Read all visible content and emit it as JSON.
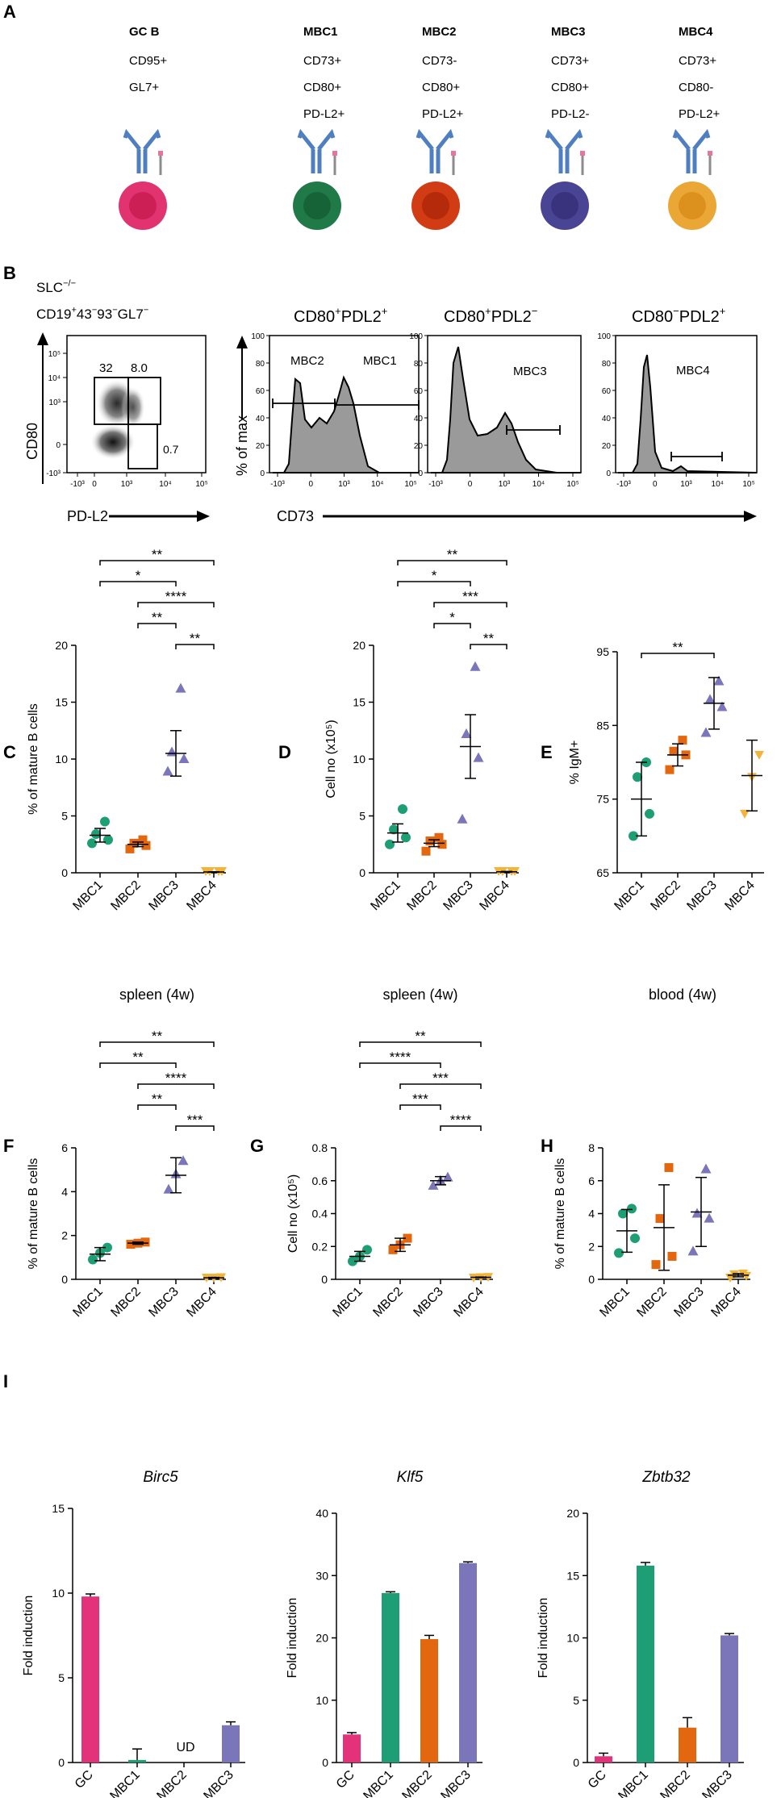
{
  "colors": {
    "mbc1": "#1d9e74",
    "mbc2": "#e2670e",
    "mbc3": "#7b75ba",
    "mbc4": "#f2b43a",
    "gc": "#e4327a",
    "antibody": "#4f7fc0"
  },
  "panel_a": {
    "label": "A",
    "cells": [
      {
        "name": "GC B",
        "markers": [
          "CD95+",
          "GL7+"
        ],
        "fill": "#e0336f",
        "nucleus": "#cc1f55"
      },
      {
        "name": "MBC1",
        "markers": [
          "CD73+",
          "CD80+",
          "PD-L2+"
        ],
        "fill": "#1f7a47",
        "nucleus": "#166338"
      },
      {
        "name": "MBC2",
        "markers": [
          "CD73-",
          "CD80+",
          "PD-L2+"
        ],
        "fill": "#d23c14",
        "nucleus": "#b52a0a"
      },
      {
        "name": "MBC3",
        "markers": [
          "CD73+",
          "CD80+",
          "PD-L2-"
        ],
        "fill": "#4a4494",
        "nucleus": "#39337d"
      },
      {
        "name": "MBC4",
        "markers": [
          "CD73+",
          "CD80-",
          "PD-L2+"
        ],
        "fill": "#eba735",
        "nucleus": "#dc901e"
      }
    ]
  },
  "panel_b": {
    "label": "B",
    "gating_title_1": "SLC-/-",
    "gating_title_2": "CD19+43-93-GL7-",
    "dot_plot": {
      "y_label": "CD80",
      "x_label": "PD-L2",
      "y_ticks": [
        "10⁵",
        "10⁴",
        "10³",
        "0",
        "-10³"
      ],
      "x_ticks": [
        "-10³",
        "0",
        "10³",
        "10⁴",
        "10⁵"
      ],
      "gate_values": [
        "32",
        "8.0",
        "0.7"
      ]
    },
    "histograms": [
      {
        "title": "CD80+PDL2+",
        "gate_labels": [
          "MBC2",
          "MBC1"
        ]
      },
      {
        "title": "CD80+PDL2-",
        "gate_labels": [
          "MBC3"
        ]
      },
      {
        "title": "CD80-PDL2+",
        "gate_labels": [
          "MBC4"
        ]
      }
    ],
    "hist_y_label": "% of max",
    "hist_y_ticks": [
      "100",
      "80",
      "60",
      "40",
      "20",
      "0"
    ],
    "hist_x_ticks": [
      "-10³",
      "0",
      "10³",
      "10⁴",
      "10⁵"
    ],
    "hist_x_label": "CD73"
  },
  "chart_data": [
    {
      "panel": "C",
      "type": "scatter",
      "categories": [
        "MBC1",
        "MBC2",
        "MBC3",
        "MBC4"
      ],
      "ylabel": "% of mature B cells",
      "title": "",
      "ylim": [
        0,
        20
      ],
      "yticks": [
        0,
        5,
        10,
        15,
        20
      ],
      "series": [
        {
          "name": "MBC1",
          "values": [
            2.6,
            2.9,
            3.4,
            4.5
          ],
          "mean": 3.3,
          "err": 0.6
        },
        {
          "name": "MBC2",
          "values": [
            2.1,
            2.4,
            2.6,
            2.9
          ],
          "mean": 2.5,
          "err": 0.2
        },
        {
          "name": "MBC3",
          "values": [
            8.9,
            10.0,
            10.6,
            16.2
          ],
          "mean": 10.5,
          "err": 2.0
        },
        {
          "name": "MBC4",
          "values": [
            0.04,
            0.06,
            0.08,
            0.1
          ],
          "mean": 0.07,
          "err": 0.02
        }
      ],
      "significance": [
        {
          "from": 0,
          "to": 3,
          "label": "**"
        },
        {
          "from": 0,
          "to": 2,
          "label": "*"
        },
        {
          "from": 1,
          "to": 3,
          "label": "****"
        },
        {
          "from": 1,
          "to": 2,
          "label": "**"
        },
        {
          "from": 2,
          "to": 3,
          "label": "**"
        }
      ]
    },
    {
      "panel": "D",
      "type": "scatter",
      "categories": [
        "MBC1",
        "MBC2",
        "MBC3",
        "MBC4"
      ],
      "ylabel": "Cell no (x10⁵)",
      "title": "",
      "ylim": [
        0,
        20
      ],
      "yticks": [
        0,
        5,
        10,
        15,
        20
      ],
      "series": [
        {
          "name": "MBC1",
          "values": [
            2.5,
            3.1,
            3.8,
            5.6
          ],
          "mean": 3.5,
          "err": 0.8
        },
        {
          "name": "MBC2",
          "values": [
            1.9,
            2.5,
            2.8,
            3.1
          ],
          "mean": 2.6,
          "err": 0.3
        },
        {
          "name": "MBC3",
          "values": [
            4.7,
            10.1,
            12.2,
            18.1
          ],
          "mean": 11.1,
          "err": 2.8
        },
        {
          "name": "MBC4",
          "values": [
            0.05,
            0.08,
            0.1,
            0.13
          ],
          "mean": 0.09,
          "err": 0.03
        }
      ],
      "significance": [
        {
          "from": 0,
          "to": 3,
          "label": "**"
        },
        {
          "from": 0,
          "to": 2,
          "label": "*"
        },
        {
          "from": 1,
          "to": 3,
          "label": "***"
        },
        {
          "from": 1,
          "to": 2,
          "label": "*"
        },
        {
          "from": 2,
          "to": 3,
          "label": "**"
        }
      ]
    },
    {
      "panel": "E",
      "type": "scatter",
      "categories": [
        "MBC1",
        "MBC2",
        "MBC3",
        "MBC4"
      ],
      "ylabel": "% IgM+",
      "title": "",
      "ylim": [
        65,
        95
      ],
      "yticks": [
        65,
        75,
        85,
        95
      ],
      "series": [
        {
          "name": "MBC1",
          "values": [
            70,
            73,
            78,
            80
          ],
          "mean": 75,
          "err": 5
        },
        {
          "name": "MBC2",
          "values": [
            79,
            81,
            81.5,
            83
          ],
          "mean": 81,
          "err": 1.5
        },
        {
          "name": "MBC3",
          "values": [
            84,
            87.5,
            88.5,
            91
          ],
          "mean": 88,
          "err": 3.5
        },
        {
          "name": "MBC4",
          "values": [
            73,
            78,
            81
          ],
          "mean": 78.2,
          "err": 4.8
        }
      ],
      "significance": [
        {
          "from": 0,
          "to": 2,
          "label": "**"
        }
      ]
    },
    {
      "panel": "F",
      "type": "scatter",
      "categories": [
        "MBC1",
        "MBC2",
        "MBC3",
        "MBC4"
      ],
      "ylabel": "% of mature B cells",
      "title": "spleen (4w)",
      "ylim": [
        0,
        6
      ],
      "yticks": [
        0,
        2,
        4,
        6
      ],
      "series": [
        {
          "name": "MBC1",
          "values": [
            0.9,
            1.2,
            1.45
          ],
          "mean": 1.15,
          "err": 0.3
        },
        {
          "name": "MBC2",
          "values": [
            1.6,
            1.65,
            1.7
          ],
          "mean": 1.65,
          "err": 0.05
        },
        {
          "name": "MBC3",
          "values": [
            4.1,
            4.8,
            5.4
          ],
          "mean": 4.75,
          "err": 0.8
        },
        {
          "name": "MBC4",
          "values": [
            0.05,
            0.07,
            0.09
          ],
          "mean": 0.07,
          "err": 0.02
        }
      ],
      "significance": [
        {
          "from": 0,
          "to": 3,
          "label": "**"
        },
        {
          "from": 0,
          "to": 2,
          "label": "**"
        },
        {
          "from": 1,
          "to": 3,
          "label": "****"
        },
        {
          "from": 1,
          "to": 2,
          "label": "**"
        },
        {
          "from": 2,
          "to": 3,
          "label": "***"
        }
      ]
    },
    {
      "panel": "G",
      "type": "scatter",
      "categories": [
        "MBC1",
        "MBC2",
        "MBC3",
        "MBC4"
      ],
      "ylabel": "Cell no (x10⁵)",
      "title": "spleen (4w)",
      "ylim": [
        0,
        0.8
      ],
      "yticks": [
        0,
        0.2,
        0.4,
        0.6,
        0.8
      ],
      "series": [
        {
          "name": "MBC1",
          "values": [
            0.11,
            0.14,
            0.18
          ],
          "mean": 0.14,
          "err": 0.03
        },
        {
          "name": "MBC2",
          "values": [
            0.18,
            0.21,
            0.25
          ],
          "mean": 0.21,
          "err": 0.04
        },
        {
          "name": "MBC3",
          "values": [
            0.57,
            0.6,
            0.62
          ],
          "mean": 0.6,
          "err": 0.025
        },
        {
          "name": "MBC4",
          "values": [
            0.01,
            0.012,
            0.014
          ],
          "mean": 0.012,
          "err": 0.002
        }
      ],
      "significance": [
        {
          "from": 0,
          "to": 3,
          "label": "**"
        },
        {
          "from": 0,
          "to": 2,
          "label": "****"
        },
        {
          "from": 1,
          "to": 3,
          "label": "***"
        },
        {
          "from": 1,
          "to": 2,
          "label": "***"
        },
        {
          "from": 2,
          "to": 3,
          "label": "****"
        }
      ]
    },
    {
      "panel": "H",
      "type": "scatter",
      "categories": [
        "MBC1",
        "MBC2",
        "MBC3",
        "MBC4"
      ],
      "ylabel": "% of mature B cells",
      "title": "blood (4w)",
      "ylim": [
        0,
        8
      ],
      "yticks": [
        0,
        2,
        4,
        6,
        8
      ],
      "series": [
        {
          "name": "MBC1",
          "values": [
            1.6,
            2.5,
            4.0,
            4.3
          ],
          "mean": 2.95,
          "err": 1.3
        },
        {
          "name": "MBC2",
          "values": [
            0.9,
            1.4,
            3.7,
            6.8
          ],
          "mean": 3.15,
          "err": 2.6
        },
        {
          "name": "MBC3",
          "values": [
            1.7,
            3.7,
            4.0,
            6.7
          ],
          "mean": 4.1,
          "err": 2.1
        },
        {
          "name": "MBC4",
          "values": [
            0.1,
            0.2,
            0.3,
            0.35
          ],
          "mean": 0.25,
          "err": 0.1
        }
      ],
      "significance": []
    },
    {
      "panel": "I",
      "type": "bar",
      "title": "Birc5",
      "categories": [
        "GC",
        "MBC1",
        "MBC2",
        "MBC3"
      ],
      "values": [
        9.8,
        0.15,
        0,
        2.2
      ],
      "errors": [
        0.15,
        0.65,
        0,
        0.2
      ],
      "annotations": [
        "",
        "",
        "UD",
        ""
      ],
      "ylabel": "Fold induction",
      "ylim": [
        0,
        15
      ],
      "yticks": [
        0,
        5,
        10,
        15
      ]
    },
    {
      "panel": "I",
      "type": "bar",
      "title": "Klf5",
      "categories": [
        "GC",
        "MBC1",
        "MBC2",
        "MBC3"
      ],
      "values": [
        4.5,
        27.2,
        19.8,
        32
      ],
      "errors": [
        0.3,
        0.2,
        0.6,
        0.2
      ],
      "annotations": [
        "",
        "",
        "",
        ""
      ],
      "ylabel": "Fold induction",
      "ylim": [
        0,
        40
      ],
      "yticks": [
        0,
        10,
        20,
        30,
        40
      ]
    },
    {
      "panel": "I",
      "type": "bar",
      "title": "Zbtb32",
      "categories": [
        "GC",
        "MBC1",
        "MBC2",
        "MBC3"
      ],
      "values": [
        0.5,
        15.8,
        2.8,
        10.2
      ],
      "errors": [
        0.25,
        0.25,
        0.8,
        0.15
      ],
      "annotations": [
        "",
        "",
        "",
        ""
      ],
      "ylabel": "Fold induction",
      "ylim": [
        0,
        20
      ],
      "yticks": [
        0,
        5,
        10,
        15,
        20
      ]
    }
  ],
  "panel_i_label": "I"
}
